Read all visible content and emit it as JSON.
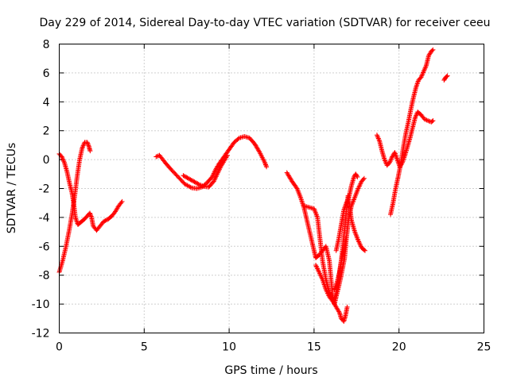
{
  "chart_data": {
    "type": "scatter",
    "title": "Day 229 of 2014, Sidereal Day-to-day VTEC variation (SDTVAR) for receiver ceeu",
    "xlabel": "GPS time / hours",
    "ylabel": "SDTVAR / TECUs",
    "xlim": [
      0,
      25
    ],
    "ylim": [
      -12,
      8
    ],
    "x_ticks": [
      0,
      5,
      10,
      15,
      20,
      25
    ],
    "y_ticks": [
      -12,
      -10,
      -8,
      -6,
      -4,
      -2,
      0,
      2,
      4,
      6,
      8
    ],
    "grid": true,
    "marker": "plus",
    "color": "#ff0000",
    "arcs": [
      [
        [
          0.0,
          -7.8
        ],
        [
          0.2,
          -7.0
        ],
        [
          0.4,
          -6.0
        ],
        [
          0.6,
          -4.8
        ],
        [
          0.75,
          -3.8
        ],
        [
          0.9,
          -2.6
        ],
        [
          1.05,
          -1.2
        ],
        [
          1.2,
          0.0
        ],
        [
          1.35,
          0.8
        ],
        [
          1.5,
          1.2
        ],
        [
          1.65,
          1.2
        ],
        [
          1.75,
          0.9
        ],
        [
          1.82,
          0.6
        ]
      ],
      [
        [
          0.0,
          0.4
        ],
        [
          0.15,
          0.2
        ],
        [
          0.3,
          -0.2
        ],
        [
          0.45,
          -0.8
        ],
        [
          0.6,
          -1.6
        ],
        [
          0.75,
          -2.3
        ],
        [
          0.85,
          -3.0
        ],
        [
          0.95,
          -4.0
        ],
        [
          1.1,
          -4.5
        ],
        [
          1.3,
          -4.3
        ],
        [
          1.5,
          -4.1
        ],
        [
          1.65,
          -3.9
        ],
        [
          1.8,
          -3.7
        ],
        [
          1.9,
          -4.0
        ],
        [
          2.0,
          -4.6
        ],
        [
          2.2,
          -4.9
        ],
        [
          2.4,
          -4.6
        ],
        [
          2.6,
          -4.3
        ],
        [
          2.9,
          -4.1
        ],
        [
          3.1,
          -3.9
        ],
        [
          3.3,
          -3.6
        ],
        [
          3.5,
          -3.2
        ],
        [
          3.7,
          -2.9
        ]
      ],
      [
        [
          5.7,
          0.2
        ],
        [
          5.9,
          0.3
        ],
        [
          6.1,
          0.0
        ],
        [
          6.3,
          -0.3
        ],
        [
          6.6,
          -0.7
        ],
        [
          7.0,
          -1.2
        ],
        [
          7.4,
          -1.7
        ],
        [
          7.8,
          -1.95
        ],
        [
          8.1,
          -2.0
        ],
        [
          8.4,
          -1.9
        ],
        [
          8.7,
          -1.6
        ],
        [
          9.0,
          -1.2
        ],
        [
          9.2,
          -0.7
        ],
        [
          9.4,
          -0.3
        ],
        [
          9.7,
          0.2
        ],
        [
          10.0,
          0.7
        ],
        [
          10.3,
          1.2
        ],
        [
          10.6,
          1.5
        ],
        [
          10.9,
          1.6
        ],
        [
          11.2,
          1.5
        ],
        [
          11.5,
          1.1
        ],
        [
          11.8,
          0.5
        ],
        [
          12.1,
          -0.2
        ],
        [
          12.2,
          -0.5
        ]
      ],
      [
        [
          7.3,
          -1.1
        ],
        [
          7.6,
          -1.3
        ],
        [
          7.9,
          -1.5
        ],
        [
          8.2,
          -1.7
        ],
        [
          8.5,
          -1.85
        ],
        [
          8.8,
          -1.9
        ],
        [
          9.1,
          -1.5
        ],
        [
          9.3,
          -1.0
        ],
        [
          9.5,
          -0.5
        ],
        [
          9.7,
          -0.1
        ],
        [
          9.9,
          0.3
        ]
      ],
      [
        [
          13.4,
          -0.9
        ],
        [
          13.7,
          -1.5
        ],
        [
          14.0,
          -2.0
        ],
        [
          14.2,
          -2.6
        ],
        [
          14.4,
          -3.3
        ],
        [
          14.6,
          -4.3
        ],
        [
          14.8,
          -5.3
        ],
        [
          15.0,
          -6.3
        ],
        [
          15.1,
          -6.8
        ],
        [
          15.3,
          -6.6
        ],
        [
          15.5,
          -6.3
        ],
        [
          15.7,
          -6.0
        ],
        [
          15.9,
          -7.0
        ],
        [
          16.0,
          -8.3
        ],
        [
          16.1,
          -9.5
        ],
        [
          16.2,
          -10.0
        ],
        [
          16.3,
          -9.5
        ],
        [
          16.45,
          -8.8
        ],
        [
          16.6,
          -8.0
        ],
        [
          16.8,
          -6.8
        ],
        [
          16.9,
          -5.5
        ],
        [
          17.05,
          -4.0
        ],
        [
          17.2,
          -3.2
        ],
        [
          17.4,
          -2.6
        ],
        [
          17.6,
          -2.0
        ],
        [
          17.8,
          -1.5
        ],
        [
          17.95,
          -1.3
        ]
      ],
      [
        [
          14.4,
          -3.2
        ],
        [
          14.7,
          -3.3
        ],
        [
          15.0,
          -3.4
        ],
        [
          15.2,
          -4.0
        ],
        [
          15.35,
          -5.5
        ],
        [
          15.5,
          -7.0
        ],
        [
          15.7,
          -8.3
        ],
        [
          15.9,
          -9.2
        ],
        [
          16.1,
          -9.7
        ],
        [
          16.25,
          -9.5
        ],
        [
          16.4,
          -8.6
        ],
        [
          16.6,
          -7.0
        ],
        [
          16.75,
          -5.3
        ],
        [
          16.9,
          -3.6
        ],
        [
          17.0,
          -2.5
        ],
        [
          17.1,
          -3.2
        ],
        [
          17.2,
          -4.2
        ],
        [
          17.4,
          -5.0
        ],
        [
          17.6,
          -5.6
        ],
        [
          17.8,
          -6.1
        ],
        [
          18.0,
          -6.3
        ]
      ],
      [
        [
          15.1,
          -7.3
        ],
        [
          15.3,
          -7.8
        ],
        [
          15.5,
          -8.3
        ],
        [
          15.7,
          -9.0
        ],
        [
          15.9,
          -9.5
        ],
        [
          16.1,
          -9.8
        ],
        [
          16.3,
          -10.2
        ],
        [
          16.5,
          -10.6
        ],
        [
          16.6,
          -11.0
        ],
        [
          16.75,
          -11.2
        ],
        [
          16.85,
          -10.8
        ],
        [
          16.95,
          -10.2
        ]
      ],
      [
        [
          16.2,
          -9.0
        ],
        [
          16.35,
          -8.5
        ],
        [
          16.5,
          -7.8
        ],
        [
          16.6,
          -7.0
        ],
        [
          16.75,
          -6.3
        ],
        [
          16.85,
          -5.5
        ]
      ],
      [
        [
          16.3,
          -6.3
        ],
        [
          16.45,
          -5.5
        ],
        [
          16.6,
          -4.5
        ],
        [
          16.75,
          -3.5
        ],
        [
          16.9,
          -3.0
        ],
        [
          17.05,
          -2.6
        ],
        [
          17.2,
          -1.8
        ],
        [
          17.35,
          -1.2
        ],
        [
          17.45,
          -1.0
        ],
        [
          17.55,
          -1.2
        ]
      ],
      [
        [
          18.7,
          1.7
        ],
        [
          18.85,
          1.3
        ],
        [
          19.0,
          0.6
        ],
        [
          19.15,
          0.0
        ],
        [
          19.3,
          -0.4
        ],
        [
          19.45,
          -0.2
        ],
        [
          19.6,
          0.2
        ],
        [
          19.75,
          0.5
        ],
        [
          19.9,
          0.0
        ],
        [
          20.05,
          -0.5
        ],
        [
          20.2,
          -0.2
        ],
        [
          20.35,
          0.3
        ],
        [
          20.5,
          0.9
        ],
        [
          20.65,
          1.5
        ],
        [
          20.8,
          2.2
        ],
        [
          20.95,
          2.9
        ],
        [
          21.1,
          3.3
        ],
        [
          21.3,
          3.1
        ],
        [
          21.5,
          2.8
        ],
        [
          21.7,
          2.7
        ],
        [
          21.9,
          2.6
        ],
        [
          22.0,
          2.7
        ]
      ],
      [
        [
          19.5,
          -3.8
        ],
        [
          19.65,
          -3.0
        ],
        [
          19.8,
          -2.0
        ],
        [
          19.95,
          -1.2
        ],
        [
          20.1,
          -0.3
        ],
        [
          20.25,
          0.8
        ],
        [
          20.4,
          1.8
        ],
        [
          20.55,
          2.6
        ],
        [
          20.7,
          3.5
        ],
        [
          20.85,
          4.3
        ],
        [
          21.0,
          5.0
        ],
        [
          21.15,
          5.5
        ],
        [
          21.3,
          5.7
        ],
        [
          21.45,
          6.1
        ],
        [
          21.6,
          6.5
        ],
        [
          21.75,
          7.2
        ],
        [
          21.9,
          7.5
        ],
        [
          22.0,
          7.6
        ]
      ],
      [
        [
          22.65,
          5.5
        ],
        [
          22.75,
          5.7
        ],
        [
          22.85,
          5.8
        ]
      ]
    ]
  }
}
